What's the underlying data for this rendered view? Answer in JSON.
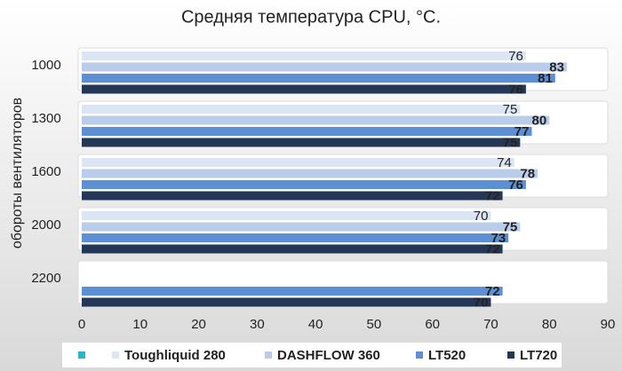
{
  "chart_data": {
    "type": "hbar",
    "title": "Средняя температура CPU, °C.",
    "y_label": "обороты вентиляторов",
    "categories": [
      "1000",
      "1300",
      "1600",
      "2000",
      "2200"
    ],
    "series": [
      {
        "name": "Toughliquid 280",
        "color": "#dbe5f4",
        "values": [
          76,
          75,
          74,
          70,
          null
        ]
      },
      {
        "name": "DASHFLOW 360",
        "color": "#b9cdeb",
        "values": [
          83,
          80,
          78,
          75,
          null
        ]
      },
      {
        "name": "LT520",
        "color": "#5d8fd5",
        "values": [
          81,
          77,
          76,
          73,
          72
        ]
      },
      {
        "name": "LT720",
        "color": "#253757",
        "values": [
          76,
          75,
          72,
          72,
          70
        ]
      }
    ],
    "xlim": [
      0,
      90
    ],
    "xticks": [
      0,
      10,
      20,
      30,
      40,
      50,
      60,
      70,
      80,
      90
    ]
  }
}
